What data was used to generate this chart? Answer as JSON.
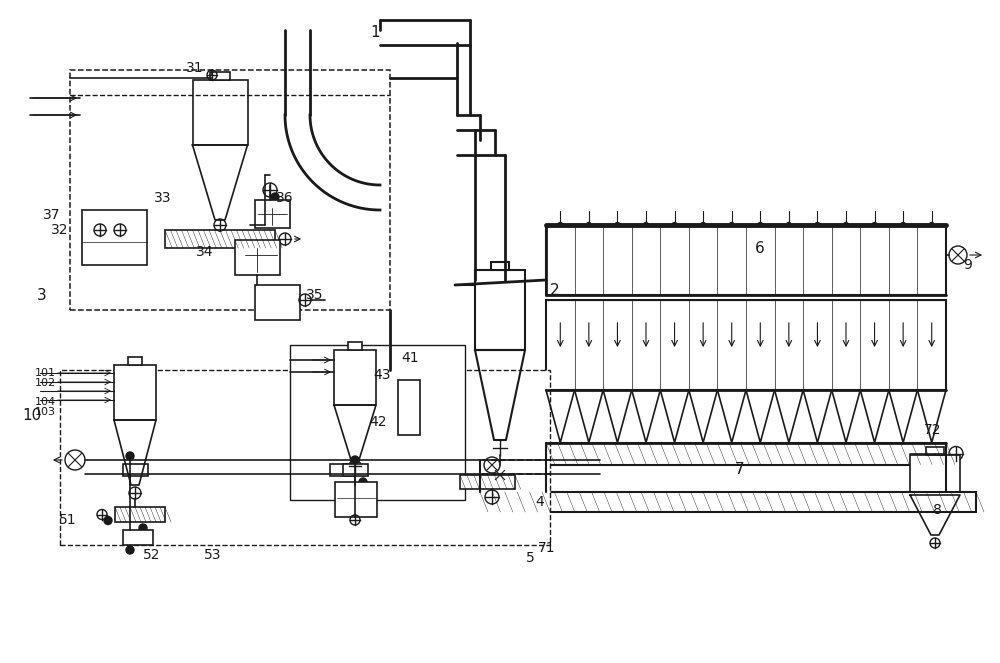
{
  "bg_color": "#ffffff",
  "line_color": "#1a1a1a",
  "figsize": [
    10.0,
    6.63
  ],
  "dpi": 100
}
